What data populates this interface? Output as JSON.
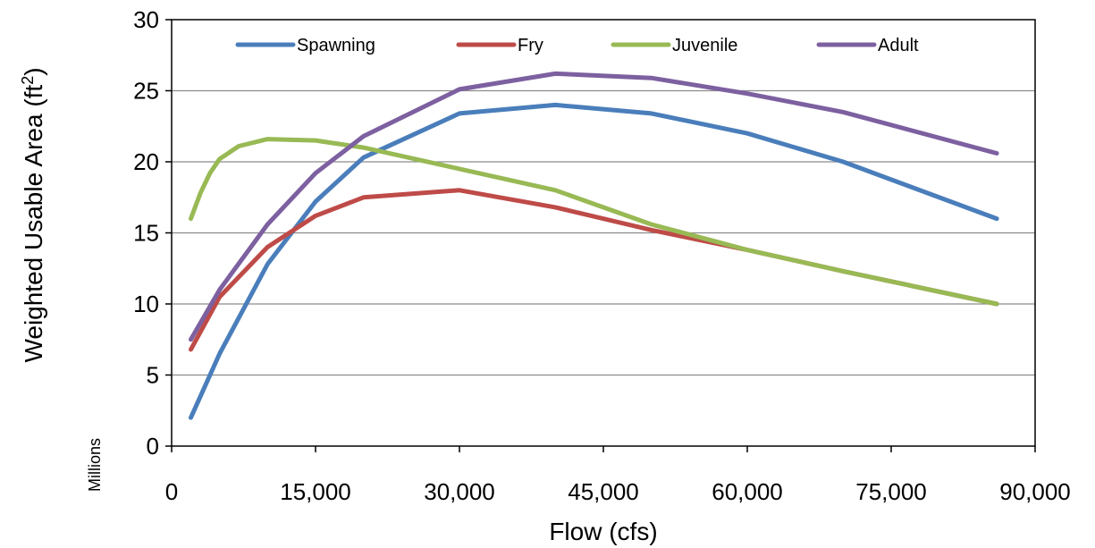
{
  "chart_data": {
    "type": "line",
    "title": "",
    "xlabel": "Flow (cfs)",
    "ylabel": "Weighted Usable Area (ft",
    "ylabel_sup": "2",
    "ylabel_close": ")",
    "y_unit_note": "Millions",
    "xlim": [
      0,
      90000
    ],
    "ylim": [
      0,
      30
    ],
    "x_ticks": [
      0,
      15000,
      30000,
      45000,
      60000,
      75000,
      90000
    ],
    "x_tick_labels": [
      "0",
      "15,000",
      "30,000",
      "45,000",
      "60,000",
      "75,000",
      "90,000"
    ],
    "y_ticks": [
      0,
      5,
      10,
      15,
      20,
      25,
      30
    ],
    "y_tick_labels": [
      "0",
      "5",
      "10",
      "15",
      "20",
      "25",
      "30"
    ],
    "grid": "horizontal",
    "legend_position": "top",
    "series": [
      {
        "name": "Spawning",
        "color": "#4a7ebb",
        "points": [
          [
            2000,
            2.0
          ],
          [
            5000,
            6.5
          ],
          [
            10000,
            12.8
          ],
          [
            15000,
            17.2
          ],
          [
            20000,
            20.3
          ],
          [
            30000,
            23.4
          ],
          [
            40000,
            24.0
          ],
          [
            50000,
            23.4
          ],
          [
            60000,
            22.0
          ],
          [
            70000,
            20.0
          ],
          [
            86000,
            16.0
          ]
        ]
      },
      {
        "name": "Fry",
        "color": "#be4b48",
        "points": [
          [
            2000,
            6.8
          ],
          [
            5000,
            10.5
          ],
          [
            10000,
            14.0
          ],
          [
            15000,
            16.2
          ],
          [
            20000,
            17.5
          ],
          [
            30000,
            18.0
          ],
          [
            40000,
            16.8
          ],
          [
            50000,
            15.2
          ],
          [
            60000,
            13.8
          ],
          [
            70000,
            12.3
          ],
          [
            86000,
            10.0
          ]
        ]
      },
      {
        "name": "Juvenile",
        "color": "#98b954",
        "points": [
          [
            2000,
            16.0
          ],
          [
            3000,
            17.8
          ],
          [
            4000,
            19.2
          ],
          [
            5000,
            20.2
          ],
          [
            7000,
            21.1
          ],
          [
            10000,
            21.6
          ],
          [
            15000,
            21.5
          ],
          [
            20000,
            21.0
          ],
          [
            30000,
            19.5
          ],
          [
            40000,
            18.0
          ],
          [
            50000,
            15.6
          ],
          [
            60000,
            13.8
          ],
          [
            70000,
            12.3
          ],
          [
            86000,
            10.0
          ]
        ]
      },
      {
        "name": "Adult",
        "color": "#7d60a0",
        "points": [
          [
            2000,
            7.5
          ],
          [
            5000,
            11.0
          ],
          [
            10000,
            15.6
          ],
          [
            15000,
            19.2
          ],
          [
            20000,
            21.8
          ],
          [
            30000,
            25.1
          ],
          [
            40000,
            26.2
          ],
          [
            50000,
            25.9
          ],
          [
            60000,
            24.8
          ],
          [
            70000,
            23.5
          ],
          [
            86000,
            20.6
          ]
        ]
      }
    ]
  }
}
